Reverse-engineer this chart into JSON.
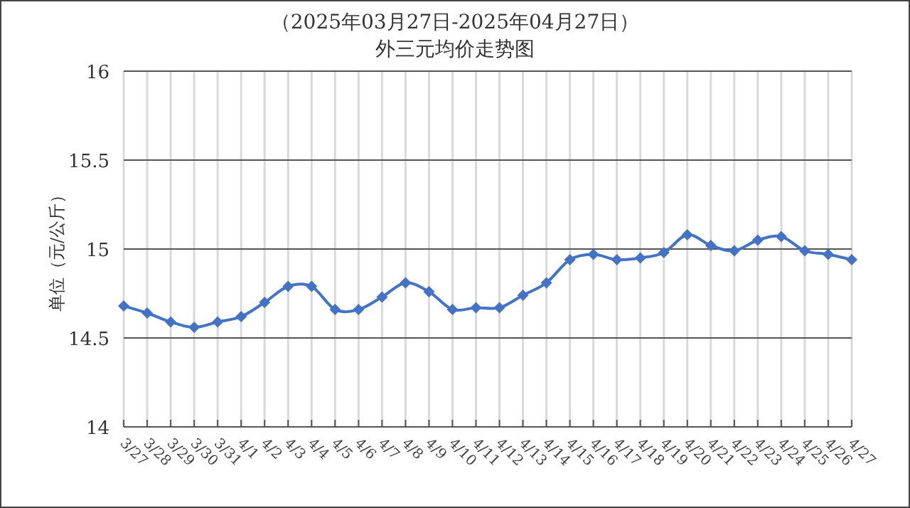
{
  "chart_data": {
    "type": "line",
    "title": "（2025年03月27日-2025年04月27日）",
    "subtitle": "外三元均价走势图",
    "ylabel": "单位（元/公斤）",
    "categories": [
      "3/27",
      "3/28",
      "3/29",
      "3/30",
      "3/31",
      "4/1",
      "4/2",
      "4/3",
      "4/4",
      "4/5",
      "4/6",
      "4/7",
      "4/8",
      "4/9",
      "4/10",
      "4/11",
      "4/12",
      "4/13",
      "4/14",
      "4/15",
      "4/16",
      "4/17",
      "4/18",
      "4/19",
      "4/20",
      "4/21",
      "4/22",
      "4/23",
      "4/24",
      "4/25",
      "4/26",
      "4/27"
    ],
    "series": [
      {
        "color": "#4472c4",
        "values": [
          14.68,
          14.64,
          14.59,
          14.56,
          14.59,
          14.62,
          14.7,
          14.79,
          14.79,
          14.66,
          14.66,
          14.73,
          14.81,
          14.76,
          14.66,
          14.67,
          14.67,
          14.74,
          14.81,
          14.94,
          14.97,
          14.94,
          14.95,
          14.98,
          15.08,
          15.02,
          14.99,
          15.05,
          15.07,
          14.99,
          14.97,
          14.94
        ]
      }
    ],
    "ylim": [
      14,
      16
    ],
    "yticks": [
      14,
      14.5,
      15,
      15.5,
      16
    ],
    "grid": true,
    "marker": "diamond",
    "line_style": "solid"
  }
}
